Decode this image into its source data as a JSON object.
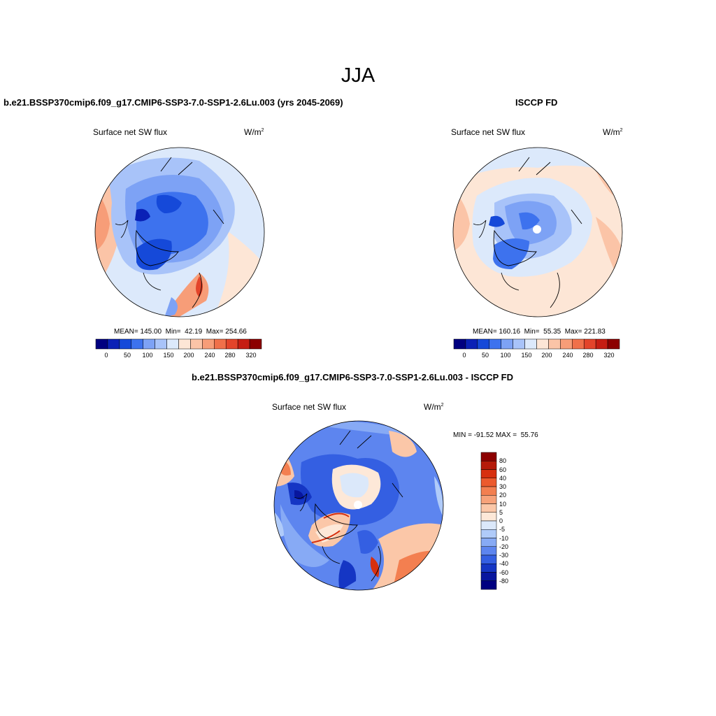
{
  "figure": {
    "title": "JJA"
  },
  "panels": [
    {
      "title": "b.e21.BSSP370cmip6.f09_g17.CMIP6-SSP3-7.0-SSP1-2.6Lu.003 (yrs 2045-2069)",
      "variable": "Surface net SW flux",
      "units_base": "W/m",
      "units_exp": "2",
      "stats": "MEAN= 145.00  Min=  42.19  Max= 254.66",
      "colorbar": {
        "ticks": [
          "0",
          "50",
          "100",
          "150",
          "200",
          "240",
          "280",
          "320"
        ],
        "colors": [
          "#000080",
          "#0a21b6",
          "#1549d9",
          "#3d72ee",
          "#7da2f5",
          "#a8c3f9",
          "#dce9fb",
          "#fde6d6",
          "#fbc4a7",
          "#f79d78",
          "#f0704a",
          "#e3442a",
          "#c51d12",
          "#8c0000"
        ]
      }
    },
    {
      "title": "ISCCP FD",
      "variable": "Surface net SW flux",
      "units_base": "W/m",
      "units_exp": "2",
      "stats": "MEAN= 160.16  Min=  55.35  Max= 221.83",
      "colorbar": {
        "ticks": [
          "0",
          "50",
          "100",
          "150",
          "200",
          "240",
          "280",
          "320"
        ],
        "colors": [
          "#000080",
          "#0a21b6",
          "#1549d9",
          "#3d72ee",
          "#7da2f5",
          "#a8c3f9",
          "#dce9fb",
          "#fde6d6",
          "#fbc4a7",
          "#f79d78",
          "#f0704a",
          "#e3442a",
          "#c51d12",
          "#8c0000"
        ]
      }
    },
    {
      "title": "b.e21.BSSP370cmip6.f09_g17.CMIP6-SSP3-7.0-SSP1-2.6Lu.003 - ISCCP FD",
      "variable": "Surface net SW flux",
      "units_base": "W/m",
      "units_exp": "2",
      "stats": "MIN = -91.52 MAX =  55.76",
      "colorbar": {
        "labels": [
          "80",
          "60",
          "40",
          "30",
          "20",
          "10",
          "5",
          "0",
          "-5",
          "-10",
          "-20",
          "-30",
          "-40",
          "-60",
          "-80"
        ],
        "colors": [
          "#8c0000",
          "#b51a0a",
          "#d7300f",
          "#ec5a2d",
          "#f37f50",
          "#f7a27a",
          "#fbc7a8",
          "#fde8d8",
          "#dbe8fa",
          "#b0cbf9",
          "#87aaf5",
          "#5d85ef",
          "#345fe2",
          "#1536c4",
          "#08169e",
          "#000080"
        ]
      }
    }
  ]
}
